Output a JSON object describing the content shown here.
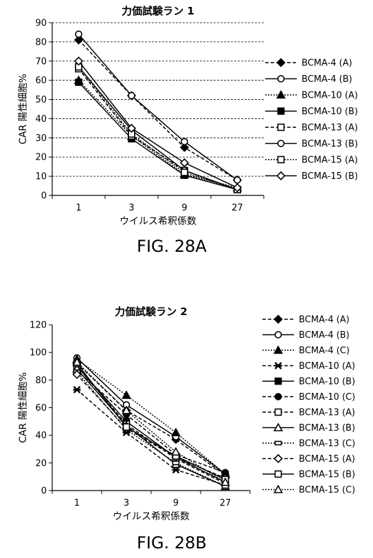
{
  "chart_data": [
    {
      "type": "line",
      "title": "力価試験ラン 1",
      "figure_label": "FIG. 28A",
      "xlabel": "ウイルス希釈係数",
      "ylabel": "CAR 陽性細胞%",
      "categories": [
        "1",
        "3",
        "9",
        "27"
      ],
      "ylim": [
        0,
        90
      ],
      "yticks": [
        0,
        10,
        20,
        30,
        40,
        50,
        60,
        70,
        80,
        90
      ],
      "grid": true,
      "legend_position": "right",
      "series": [
        {
          "name": "BCMA-4 (A)",
          "marker": "diamond-filled",
          "dash": "dashed",
          "values": [
            81,
            52,
            25,
            8
          ]
        },
        {
          "name": "BCMA-4 (B)",
          "marker": "circle-open",
          "dash": "solid",
          "values": [
            84,
            52,
            28,
            8
          ]
        },
        {
          "name": "BCMA-10 (A)",
          "marker": "triangle-filled",
          "dash": "dotted",
          "values": [
            60,
            31,
            11,
            4
          ]
        },
        {
          "name": "BCMA-10 (B)",
          "marker": "square-filled",
          "dash": "solid",
          "values": [
            59,
            29.5,
            10.5,
            3
          ]
        },
        {
          "name": "BCMA-13 (A)",
          "marker": "square-open",
          "dash": "dashed",
          "values": [
            66,
            31,
            13,
            3
          ]
        },
        {
          "name": "BCMA-13 (B)",
          "marker": "circle-open",
          "dash": "solid",
          "values": [
            67,
            34,
            13,
            3
          ]
        },
        {
          "name": "BCMA-15 (A)",
          "marker": "square-open",
          "dash": "dotted",
          "values": [
            67,
            32,
            12,
            3
          ]
        },
        {
          "name": "BCMA-15 (B)",
          "marker": "diamond-open",
          "dash": "solid",
          "values": [
            70,
            35,
            17,
            4
          ]
        }
      ]
    },
    {
      "type": "line",
      "title": "力価試験ラン 2",
      "figure_label": "FIG. 28B",
      "xlabel": "ウイルス希釈係数",
      "ylabel": "CAR 陽性細胞%",
      "categories": [
        "1",
        "3",
        "9",
        "27"
      ],
      "ylim": [
        0,
        120
      ],
      "yticks": [
        0,
        20,
        40,
        60,
        80,
        100,
        120
      ],
      "grid": false,
      "legend_position": "right",
      "series": [
        {
          "name": "BCMA-4 (A)",
          "marker": "diamond-filled",
          "dash": "dashed",
          "values": [
            92,
            58,
            37,
            11
          ]
        },
        {
          "name": "BCMA-4 (B)",
          "marker": "circle-open",
          "dash": "solid",
          "values": [
            96,
            62,
            39,
            12
          ]
        },
        {
          "name": "BCMA-4 (C)",
          "marker": "triangle-filled",
          "dash": "dotted",
          "values": [
            95,
            69,
            42,
            12
          ]
        },
        {
          "name": "BCMA-10 (A)",
          "marker": "star",
          "dash": "dashed",
          "values": [
            73,
            42,
            15,
            4
          ]
        },
        {
          "name": "BCMA-10 (B)",
          "marker": "square-filled",
          "dash": "solid",
          "values": [
            90,
            50,
            24,
            6
          ]
        },
        {
          "name": "BCMA-10 (C)",
          "marker": "circle-filled",
          "dash": "dashed",
          "values": [
            87,
            55,
            26,
            13
          ]
        },
        {
          "name": "BCMA-13 (A)",
          "marker": "square-open",
          "dash": "dashed",
          "values": [
            90,
            48,
            23,
            5
          ]
        },
        {
          "name": "BCMA-13 (B)",
          "marker": "triangle-open",
          "dash": "solid",
          "values": [
            88,
            47,
            19,
            3
          ]
        },
        {
          "name": "BCMA-13 (C)",
          "marker": "square-open-small",
          "dash": "dotted",
          "values": [
            86,
            44,
            20,
            3
          ]
        },
        {
          "name": "BCMA-15 (A)",
          "marker": "diamond-open",
          "dash": "dashed",
          "values": [
            84,
            45,
            24,
            9
          ]
        },
        {
          "name": "BCMA-15 (B)",
          "marker": "square-open",
          "dash": "solid",
          "values": [
            92,
            46,
            25,
            8
          ]
        },
        {
          "name": "BCMA-15 (C)",
          "marker": "triangle-open",
          "dash": "dotted",
          "values": [
            93,
            58,
            28,
            6
          ]
        }
      ]
    }
  ]
}
